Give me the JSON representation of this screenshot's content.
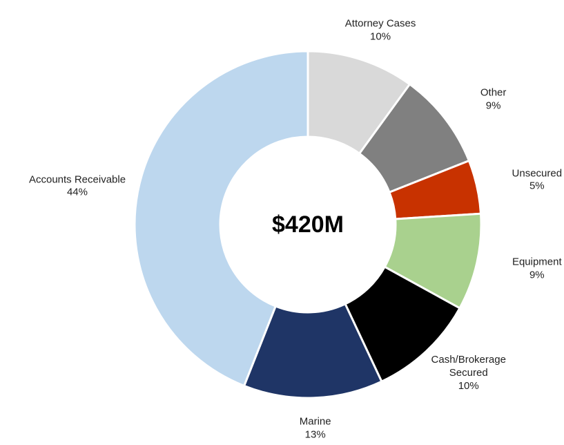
{
  "chart_data": {
    "type": "donut",
    "center_label": "$420M",
    "categories": [
      "Attorney Cases",
      "Other",
      "Unsecured",
      "Equipment",
      "Cash/Brokerage Secured",
      "Marine",
      "Accounts Receivable"
    ],
    "values": [
      10,
      9,
      5,
      9,
      10,
      13,
      44
    ],
    "value_labels": [
      "10%",
      "9%",
      "5%",
      "9%",
      "10%",
      "13%",
      "44%"
    ],
    "colors": [
      "#d9d9d9",
      "#808080",
      "#c83200",
      "#a9d18e",
      "#000000",
      "#1f3566",
      "#bdd7ee"
    ]
  }
}
